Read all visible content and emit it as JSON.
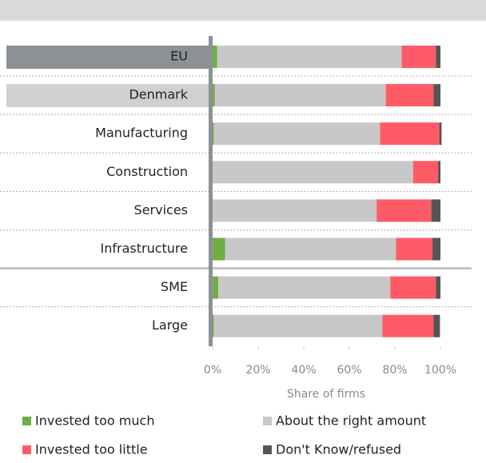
{
  "chart_data": {
    "type": "stacked_barh",
    "categories": [
      "EU",
      "Denmark",
      "Manufacturing",
      "Construction",
      "Services",
      "Infrastructure",
      "SME",
      "Large"
    ],
    "series": [
      {
        "name": "Invested too much",
        "color": "#70ad47",
        "values": [
          2,
          1,
          0.5,
          0,
          0,
          5.5,
          2.5,
          0.5
        ]
      },
      {
        "name": "About the right amount",
        "color": "#c8c8c8",
        "values": [
          81,
          75,
          73,
          88,
          72,
          75,
          75.5,
          74
        ]
      },
      {
        "name": "Invested too little",
        "color": "#ff5b66",
        "values": [
          15,
          21,
          26,
          11,
          24,
          16,
          20,
          22.5
        ]
      },
      {
        "name": "Don't Know/refused",
        "color": "#555555",
        "values": [
          2,
          3,
          1,
          1,
          4,
          3.5,
          2,
          2.8
        ]
      }
    ],
    "xlim": [
      0,
      100
    ],
    "xticks": [
      {
        "value": 0,
        "label": "0%"
      },
      {
        "value": 20,
        "label": "20%"
      },
      {
        "value": 40,
        "label": "40%"
      },
      {
        "value": 60,
        "label": "60%"
      },
      {
        "value": 80,
        "label": "80%"
      },
      {
        "value": 100,
        "label": "100%"
      }
    ],
    "x_label": "Share of firms"
  }
}
